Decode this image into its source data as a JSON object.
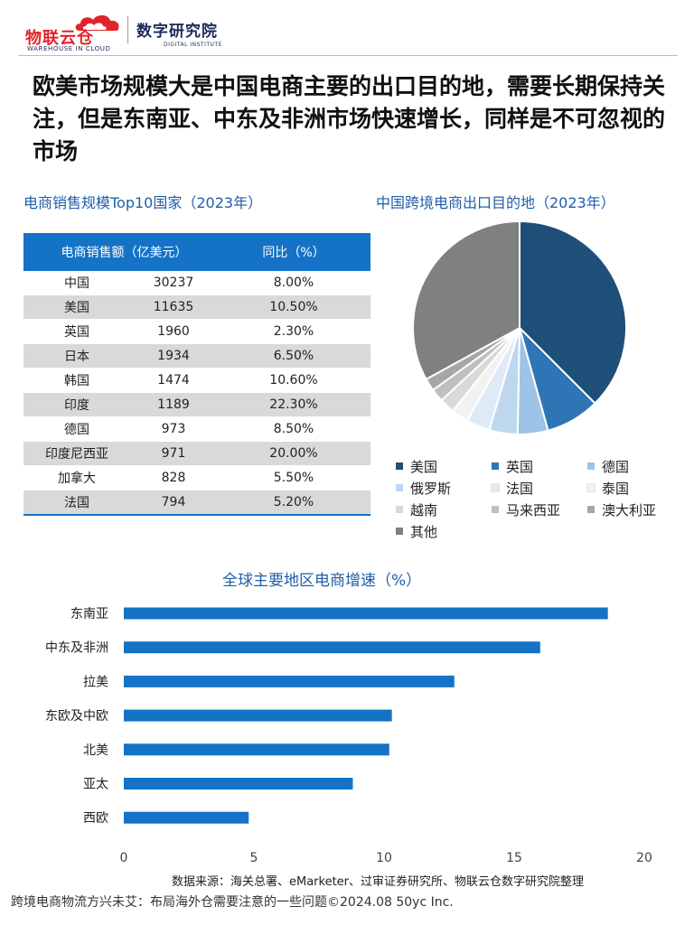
{
  "header": {
    "logo1_text": "物联云仓",
    "logo1_sub": "WAREHOUSE IN CLOUD",
    "logo2_text": "数字研究院",
    "logo2_sub": "DIGITAL INSTITUTE"
  },
  "headline": "欧美市场规模大是中国电商主要的出口目的地，需要长期保持关注，但是东南亚、中东及非洲市场快速增长，同样是不可忽视的市场",
  "table_section": {
    "title": "电商销售规模Top10国家（2023年）",
    "col_sales": "电商销售额（亿美元）",
    "col_yoy": "同比（%）"
  },
  "pie_section": {
    "title": "中国跨境电商出口目的地（2023年）"
  },
  "bar_section": {
    "title": "全球主要地区电商增速（%）"
  },
  "source": "数据来源：海关总署、eMarketer、过审证券研究所、物联云仓数字研究院整理",
  "footer": "跨境电商物流方兴未艾：布局海外仓需要注意的一些问题©2024.08 50yc Inc.",
  "chart_data": [
    {
      "type": "table",
      "title": "电商销售规模Top10国家（2023年）",
      "columns": [
        "",
        "电商销售额（亿美元）",
        "同比（%）"
      ],
      "rows": [
        {
          "name": "中国",
          "value": "30237",
          "yoy": "8.00%"
        },
        {
          "name": "美国",
          "value": "11635",
          "yoy": "10.50%"
        },
        {
          "name": "英国",
          "value": "1960",
          "yoy": "2.30%"
        },
        {
          "name": "日本",
          "value": "1934",
          "yoy": "6.50%"
        },
        {
          "name": "韩国",
          "value": "1474",
          "yoy": "10.60%"
        },
        {
          "name": "印度",
          "value": "1189",
          "yoy": "22.30%"
        },
        {
          "name": "德国",
          "value": "973",
          "yoy": "8.50%"
        },
        {
          "name": "印度尼西亚",
          "value": "971",
          "yoy": "20.00%"
        },
        {
          "name": "加拿大",
          "value": "828",
          "yoy": "5.50%"
        },
        {
          "name": "法国",
          "value": "794",
          "yoy": "5.20%"
        }
      ]
    },
    {
      "type": "pie",
      "title": "中国跨境电商出口目的地（2023年）",
      "legend_position": "bottom",
      "slices": [
        {
          "name": "美国",
          "value": 37.5,
          "color": "#1f4e79"
        },
        {
          "name": "英国",
          "value": 8.2,
          "color": "#2e75b6"
        },
        {
          "name": "德国",
          "value": 4.6,
          "color": "#9dc3e6"
        },
        {
          "name": "俄罗斯",
          "value": 4.3,
          "color": "#bdd7ee"
        },
        {
          "name": "法国",
          "value": 3.6,
          "color": "#deebf7"
        },
        {
          "name": "泰国",
          "value": 2.6,
          "color": "#f2f2f2"
        },
        {
          "name": "越南",
          "value": 2.3,
          "color": "#d9d9d9"
        },
        {
          "name": "马来西亚",
          "value": 2.0,
          "color": "#bfbfbf"
        },
        {
          "name": "澳大利亚",
          "value": 1.9,
          "color": "#a6a6a6"
        },
        {
          "name": "其他",
          "value": 33.0,
          "color": "#808080"
        }
      ]
    },
    {
      "type": "bar",
      "orientation": "horizontal",
      "title": "全球主要地区电商增速（%）",
      "categories": [
        "东南亚",
        "中东及非洲",
        "拉美",
        "东欧及中欧",
        "北美",
        "亚太",
        "西欧"
      ],
      "values": [
        18.6,
        16.0,
        12.7,
        10.3,
        10.2,
        8.8,
        4.8
      ],
      "xlim": [
        0,
        20
      ],
      "xticks": [
        0,
        5,
        10,
        15,
        20
      ],
      "color": "#1473c6",
      "grid": false
    }
  ]
}
